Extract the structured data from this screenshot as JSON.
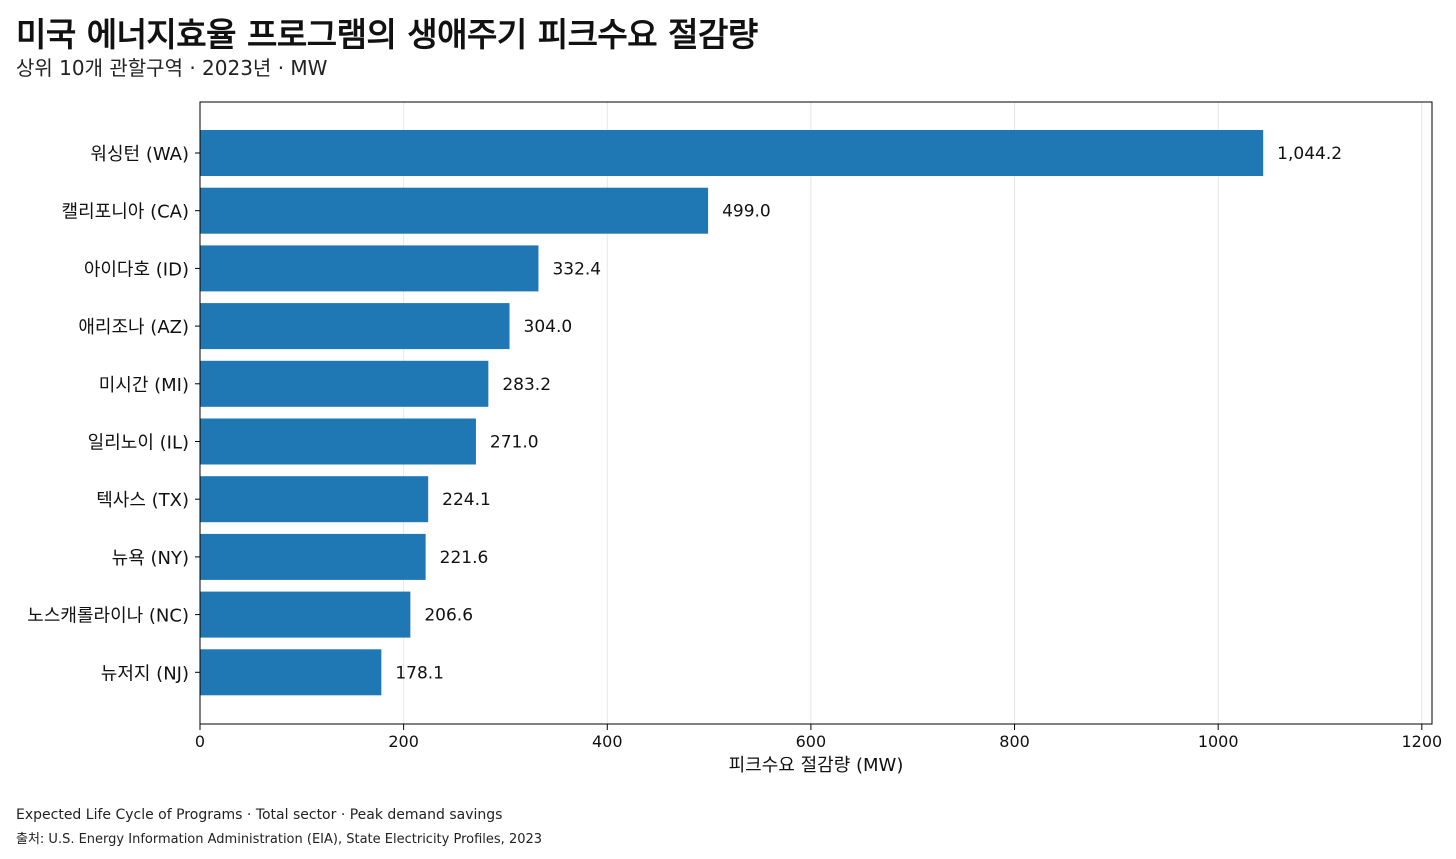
{
  "header": {
    "title": "미국 에너지효율 프로그램의 생애주기 피크수요 절감량",
    "subtitle": "상위 10개 관할구역 · 2023년 · MW"
  },
  "footer": {
    "note": "Expected Life Cycle of Programs · Total sector · Peak demand savings",
    "source": "출처: U.S. Energy Information Administration (EIA), State Electricity Profiles, 2023"
  },
  "chart_data": {
    "type": "bar",
    "orientation": "horizontal",
    "categories": [
      "워싱턴 (WA)",
      "캘리포니아 (CA)",
      "아이다호 (ID)",
      "애리조나 (AZ)",
      "미시간 (MI)",
      "일리노이 (IL)",
      "텍사스 (TX)",
      "뉴욕 (NY)",
      "노스캐롤라이나 (NC)",
      "뉴저지 (NJ)"
    ],
    "values": [
      1044.2,
      499.0,
      332.4,
      304.0,
      283.2,
      271.0,
      224.1,
      221.6,
      206.6,
      178.1
    ],
    "value_labels": [
      "1,044.2",
      "499.0",
      "332.4",
      "304.0",
      "283.2",
      "271.0",
      "224.1",
      "221.6",
      "206.6",
      "178.1"
    ],
    "xlabel": "피크수요 절감량 (MW)",
    "ylabel": "",
    "xlim": [
      0,
      1210
    ],
    "xticks": [
      0,
      200,
      400,
      600,
      800,
      1000,
      1200
    ],
    "xtick_labels": [
      "0",
      "200",
      "400",
      "600",
      "800",
      "1000",
      "1200"
    ],
    "grid": "vertical",
    "bar_color": "#1f77b4"
  }
}
